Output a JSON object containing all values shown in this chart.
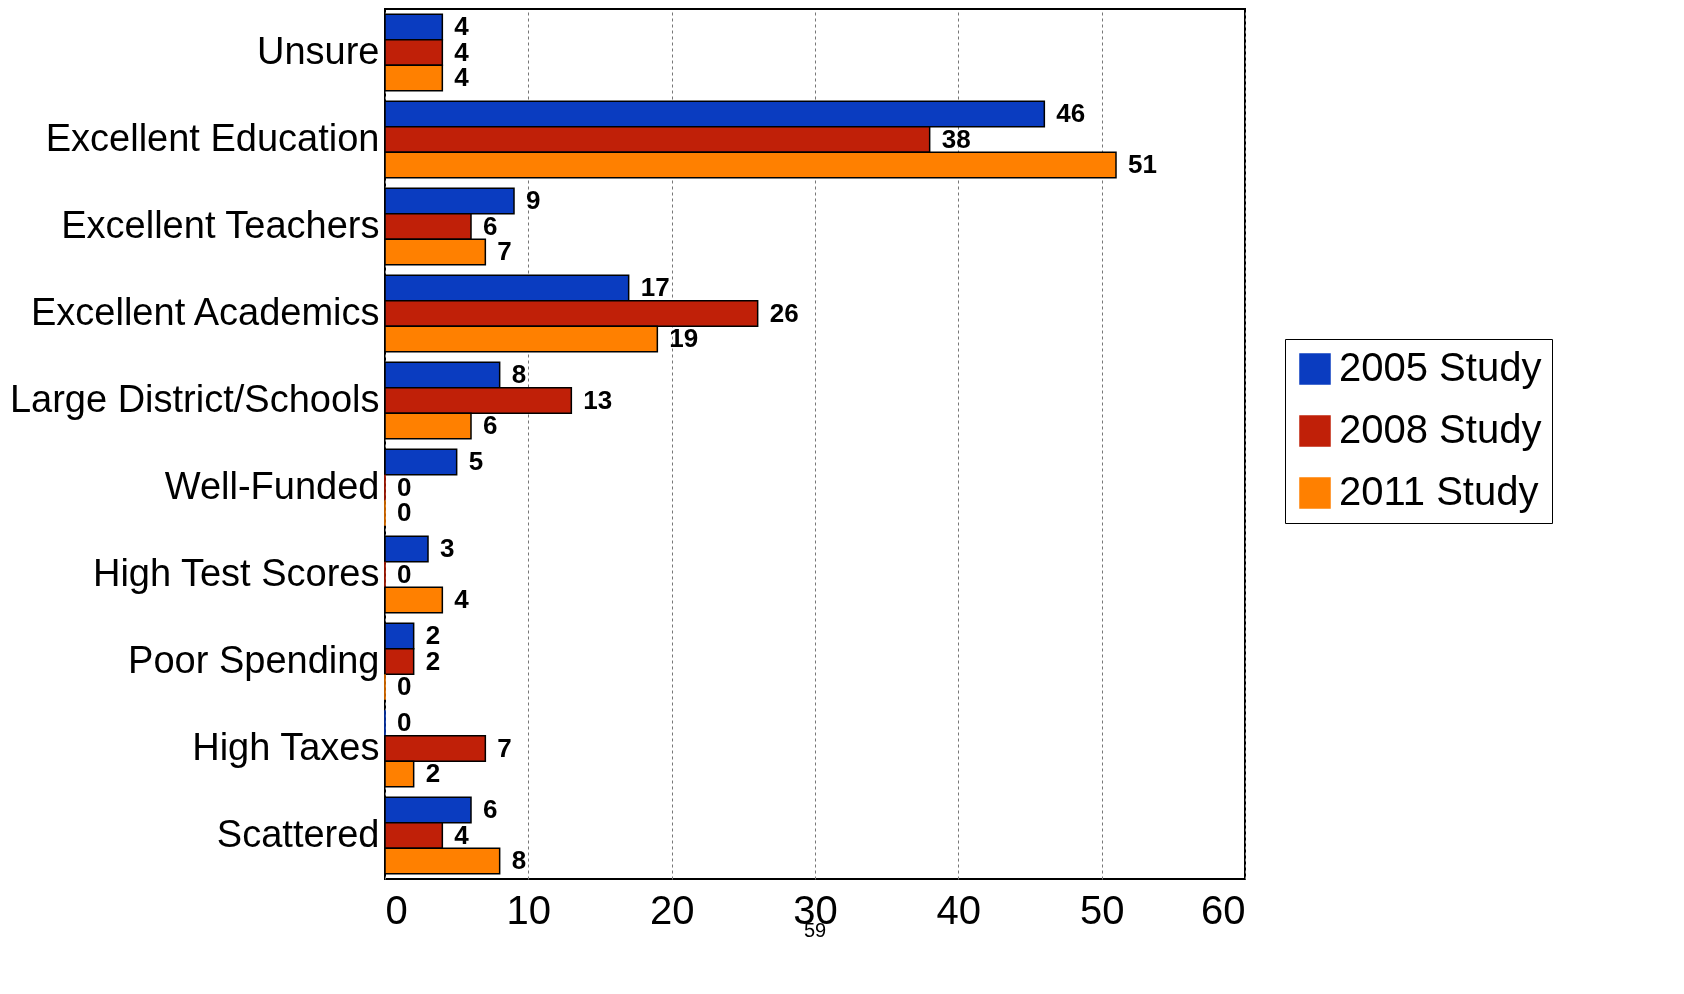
{
  "chart_data": {
    "type": "bar",
    "orientation": "horizontal",
    "categories": [
      "Unsure",
      "Excellent Education",
      "Excellent Teachers",
      "Excellent Academics",
      "Large District/Schools",
      "Well-Funded",
      "High Test Scores",
      "Poor Spending",
      "High Taxes",
      "Scattered"
    ],
    "series": [
      {
        "name": "2005 Study",
        "color": "#0a3cc0",
        "values": [
          4,
          46,
          9,
          17,
          8,
          5,
          3,
          2,
          0,
          6
        ]
      },
      {
        "name": "2008 Study",
        "color": "#c02008",
        "values": [
          4,
          38,
          6,
          26,
          13,
          0,
          0,
          2,
          7,
          4
        ]
      },
      {
        "name": "2011 Study",
        "color": "#ff8000",
        "values": [
          4,
          51,
          7,
          19,
          6,
          0,
          4,
          0,
          2,
          8
        ]
      }
    ],
    "xlim": [
      0,
      60
    ],
    "xticks": [
      0,
      10,
      20,
      30,
      40,
      50,
      60
    ],
    "grid": "x",
    "legend": "right",
    "data_labels": true,
    "annotations": [
      "59"
    ]
  }
}
